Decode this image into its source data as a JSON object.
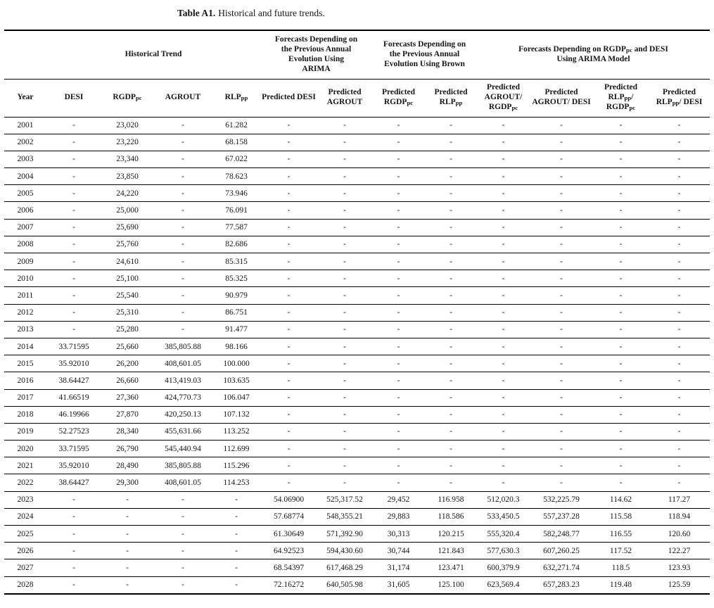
{
  "caption": {
    "label": "Table A1.",
    "text": "Historical and future trends."
  },
  "table": {
    "groups": [
      {
        "label": ""
      },
      {
        "label": "Historical Trend"
      },
      {
        "label": "Forecasts Depending on the Previous Annual Evolution Using ARIMA"
      },
      {
        "label": "Forecasts Depending on the Previous Annual Evolution Using Brown"
      },
      {
        "label": "Forecasts Depending on RGDP~pc~ and DESI Using ARIMA Model"
      }
    ],
    "columns": [
      "Year",
      "DESI",
      "RGDP~pc~",
      "AGROUT",
      "RLP~pp~",
      "Predicted DESI",
      "Predicted AGROUT",
      "Predicted RGDP~pc~",
      "Predicted RLP~pp~",
      "Predicted AGROUT/ RGDP~pc~",
      "Predicted AGROUT/ DESI",
      "Predicted RLP~pp~/ RGDP~pc~",
      "Predicted RLP~pp~/ DESI"
    ],
    "rows": [
      [
        "2001",
        "-",
        "23,020",
        "-",
        "61.282",
        "-",
        "-",
        "-",
        "-",
        "-",
        "-",
        "-",
        "-"
      ],
      [
        "2002",
        "-",
        "23,220",
        "-",
        "68.158",
        "-",
        "-",
        "-",
        "-",
        "-",
        "-",
        "-",
        "-"
      ],
      [
        "2003",
        "-",
        "23,340",
        "-",
        "67.022",
        "-",
        "-",
        "-",
        "-",
        "-",
        "-",
        "-",
        "-"
      ],
      [
        "2004",
        "-",
        "23,850",
        "-",
        "78.623",
        "-",
        "-",
        "-",
        "-",
        "-",
        "-",
        "-",
        "-"
      ],
      [
        "2005",
        "-",
        "24,220",
        "-",
        "73.946",
        "-",
        "-",
        "-",
        "-",
        "-",
        "-",
        "-",
        "-"
      ],
      [
        "2006",
        "-",
        "25,000",
        "-",
        "76.091",
        "-",
        "-",
        "-",
        "-",
        "-",
        "-",
        "-",
        "-"
      ],
      [
        "2007",
        "-",
        "25,690",
        "-",
        "77.587",
        "-",
        "-",
        "-",
        "-",
        "-",
        "-",
        "-",
        "-"
      ],
      [
        "2008",
        "-",
        "25,760",
        "-",
        "82.686",
        "-",
        "-",
        "-",
        "-",
        "-",
        "-",
        "-",
        "-"
      ],
      [
        "2009",
        "-",
        "24,610",
        "-",
        "85.315",
        "-",
        "-",
        "-",
        "-",
        "-",
        "-",
        "-",
        "-"
      ],
      [
        "2010",
        "-",
        "25,100",
        "-",
        "85.325",
        "-",
        "-",
        "-",
        "-",
        "-",
        "-",
        "-",
        "-"
      ],
      [
        "2011",
        "-",
        "25,540",
        "-",
        "90.979",
        "-",
        "-",
        "-",
        "-",
        "-",
        "-",
        "-",
        "-"
      ],
      [
        "2012",
        "-",
        "25,310",
        "-",
        "86.751",
        "-",
        "-",
        "-",
        "-",
        "-",
        "-",
        "-",
        "-"
      ],
      [
        "2013",
        "-",
        "25,280",
        "-",
        "91.477",
        "-",
        "-",
        "-",
        "-",
        "-",
        "-",
        "-",
        "-"
      ],
      [
        "2014",
        "33.71595",
        "25,660",
        "385,805.88",
        "98.166",
        "-",
        "-",
        "-",
        "-",
        "-",
        "-",
        "-",
        "-"
      ],
      [
        "2015",
        "35.92010",
        "26,200",
        "408,601.05",
        "100.000",
        "-",
        "-",
        "-",
        "-",
        "-",
        "-",
        "-",
        "-"
      ],
      [
        "2016",
        "38.64427",
        "26,660",
        "413,419.03",
        "103.635",
        "-",
        "-",
        "-",
        "-",
        "-",
        "-",
        "-",
        "-"
      ],
      [
        "2017",
        "41.66519",
        "27,360",
        "424,770.73",
        "106.047",
        "-",
        "-",
        "-",
        "-",
        "-",
        "-",
        "-",
        "-"
      ],
      [
        "2018",
        "46.19966",
        "27,870",
        "420,250.13",
        "107.132",
        "-",
        "-",
        "-",
        "-",
        "-",
        "-",
        "-",
        "-"
      ],
      [
        "2019",
        "52.27523",
        "28,340",
        "455,631.66",
        "113.252",
        "-",
        "-",
        "-",
        "-",
        "-",
        "-",
        "-",
        "-"
      ],
      [
        "2020",
        "33.71595",
        "26,790",
        "545,440.94",
        "112.699",
        "-",
        "-",
        "-",
        "-",
        "-",
        "-",
        "-",
        "-"
      ],
      [
        "2021",
        "35.92010",
        "28,490",
        "385,805.88",
        "115.296",
        "-",
        "-",
        "-",
        "-",
        "-",
        "-",
        "-",
        "-"
      ],
      [
        "2022",
        "38.64427",
        "29,300",
        "408,601.05",
        "114.253",
        "-",
        "-",
        "-",
        "-",
        "-",
        "-",
        "-",
        "-"
      ],
      [
        "2023",
        "-",
        "-",
        "-",
        "-",
        "54.06900",
        "525,317.52",
        "29,452",
        "116.958",
        "512,020.3",
        "532,225.79",
        "114.62",
        "117.27"
      ],
      [
        "2024",
        "-",
        "-",
        "-",
        "-",
        "57.68774",
        "548,355.21",
        "29,883",
        "118.586",
        "533,450.5",
        "557,237.28",
        "115.58",
        "118.94"
      ],
      [
        "2025",
        "-",
        "-",
        "-",
        "-",
        "61.30649",
        "571,392.90",
        "30,313",
        "120.215",
        "555,320.4",
        "582,248.77",
        "116.55",
        "120.60"
      ],
      [
        "2026",
        "-",
        "-",
        "-",
        "-",
        "64.92523",
        "594,430.60",
        "30,744",
        "121.843",
        "577,630.3",
        "607,260.25",
        "117.52",
        "122.27"
      ],
      [
        "2027",
        "-",
        "-",
        "-",
        "-",
        "68.54397",
        "617,468.29",
        "31,174",
        "123.471",
        "600,379.9",
        "632,271.74",
        "118.5",
        "123.93"
      ],
      [
        "2028",
        "-",
        "-",
        "-",
        "-",
        "72.16272",
        "640,505.98",
        "31,605",
        "125.100",
        "623,569.4",
        "657,283.23",
        "119.48",
        "125.59"
      ]
    ]
  }
}
